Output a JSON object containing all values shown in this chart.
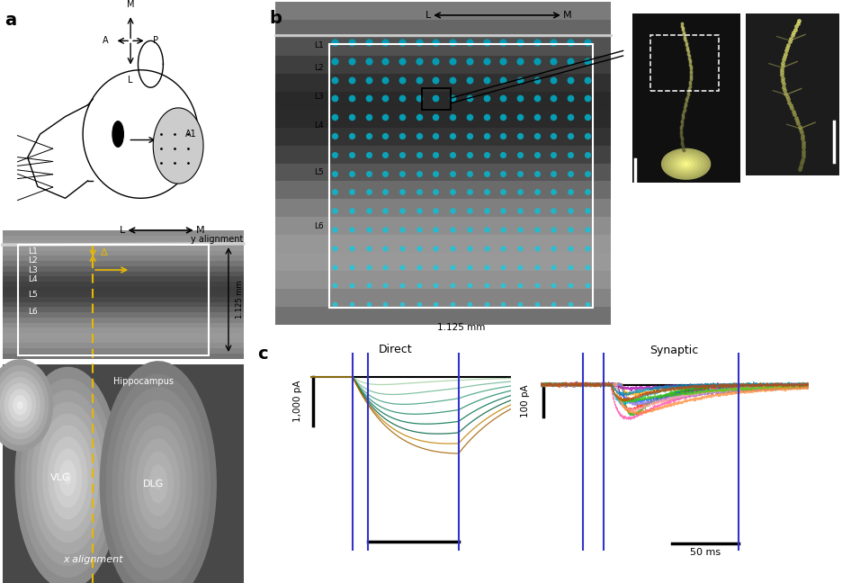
{
  "fig_width": 9.46,
  "fig_height": 6.48,
  "bg_color": "#ffffff",
  "panel_a_label": "a",
  "panel_b_label": "b",
  "panel_c_label": "c",
  "label_fontsize": 14,
  "layers": [
    "L1",
    "L2",
    "L3",
    "L4",
    "L5",
    "L6"
  ],
  "blue_line_color": "#3333cc",
  "yellow_color": "#e8b800",
  "direct_colors": [
    "#a0d0a0",
    "#70b896",
    "#40a07c",
    "#208868",
    "#007050",
    "#006040",
    "#c08000",
    "#a06000"
  ],
  "synaptic_colors": [
    "#ff0000",
    "#ff6600",
    "#ffaa00",
    "#00aa00",
    "#0055ff",
    "#aa00aa",
    "#00aacc",
    "#ff44aa",
    "#8888ff",
    "#ffaaaa",
    "#44cc00",
    "#ff8833",
    "#0088aa",
    "#cc4400"
  ]
}
